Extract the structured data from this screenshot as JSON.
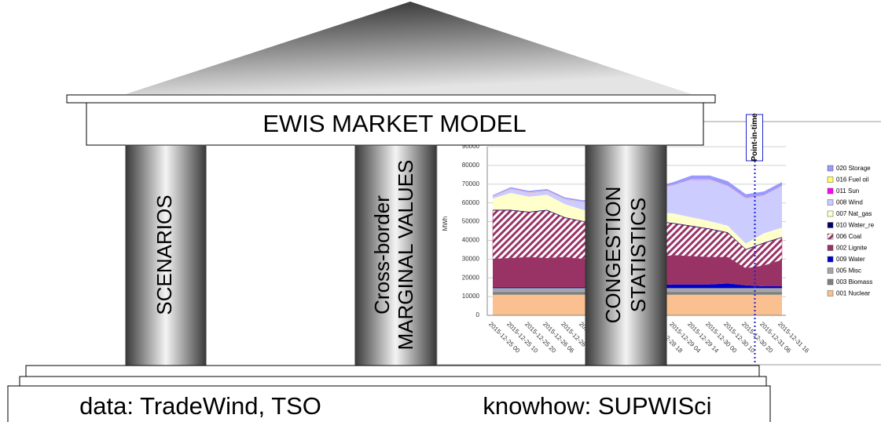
{
  "title": "EWIS MARKET MODEL",
  "pillars": [
    {
      "lines": [
        "SCENARIOS"
      ]
    },
    {
      "lines": [
        "Cross-border",
        "MARGINAL VALUES"
      ]
    },
    {
      "lines": [
        "CONGESTION",
        "STATISTICS"
      ]
    }
  ],
  "base": {
    "left": "data: TradeWind, TSO",
    "right": "knowhow: SUPWISci"
  },
  "chart_data": {
    "type": "area",
    "stacked": true,
    "y_label": "MWh",
    "annotation": "Point-in-time",
    "categories": [
      "2015-12-25 00",
      "2015-12-25 10",
      "2015-12-25 20",
      "2015-12-26 06",
      "2015-12-26 16",
      "2015-12-27 02",
      "2015-12-27 12",
      "2015-12-27 22",
      "2015-12-28 08",
      "2015-12-28 18",
      "2015-12-29 04",
      "2015-12-29 14",
      "2015-12-30 00",
      "2015-12-30 10",
      "2015-12-30 20",
      "2015-12-31 06",
      "2015-12-31 16"
    ],
    "ylim": [
      0,
      90000
    ],
    "yticks": [
      0,
      10000,
      20000,
      30000,
      40000,
      50000,
      60000,
      70000,
      80000,
      90000
    ],
    "grid": true,
    "legend": "right",
    "series": [
      {
        "name": "001 Nuclear",
        "color": "#fac090",
        "values": [
          11000,
          11000,
          11000,
          11000,
          11000,
          11000,
          11000,
          11000,
          11000,
          11000,
          11000,
          11000,
          11000,
          11000,
          11000,
          11000,
          11000
        ]
      },
      {
        "name": "003 Biomass",
        "color": "#7f7f7f",
        "values": [
          1500,
          1500,
          1500,
          1500,
          1500,
          1500,
          1500,
          1500,
          1500,
          1500,
          1500,
          1500,
          1500,
          1500,
          1500,
          1500,
          1500
        ]
      },
      {
        "name": "005 Misc",
        "color": "#a6a6a6",
        "values": [
          2000,
          2000,
          2000,
          2000,
          2000,
          2000,
          2000,
          2000,
          2000,
          2000,
          2000,
          2000,
          2000,
          2000,
          2000,
          2000,
          2000
        ]
      },
      {
        "name": "009 Water",
        "color": "#0000cc",
        "values": [
          500,
          500,
          500,
          500,
          500,
          500,
          500,
          500,
          500,
          1500,
          2000,
          2000,
          2000,
          2500,
          1500,
          1000,
          1000
        ]
      },
      {
        "name": "002 Lignite",
        "color": "#993366",
        "values": [
          15000,
          15500,
          16000,
          15500,
          16000,
          15000,
          15500,
          16000,
          16000,
          15000,
          15500,
          15000,
          14500,
          14000,
          9000,
          11000,
          14000
        ]
      },
      {
        "name": "006 Coal",
        "color": "#993366",
        "hatch": true,
        "values": [
          26000,
          25500,
          24000,
          25500,
          21000,
          20000,
          20000,
          21000,
          20000,
          19000,
          17000,
          16000,
          15000,
          13000,
          10000,
          12000,
          12000
        ]
      },
      {
        "name": "010 Water_re",
        "color": "#000066",
        "values": [
          300,
          300,
          300,
          300,
          300,
          300,
          300,
          300,
          300,
          300,
          300,
          300,
          300,
          300,
          300,
          300,
          300
        ]
      },
      {
        "name": "007 Nat_gas",
        "color": "#ffffcc",
        "values": [
          6000,
          9000,
          8000,
          8000,
          7000,
          6000,
          5000,
          5000,
          5000,
          5000,
          5000,
          4500,
          4000,
          3500,
          3000,
          5000,
          5000
        ]
      },
      {
        "name": "008 Wind",
        "color": "#ccccff",
        "values": [
          1000,
          2000,
          2000,
          2000,
          2500,
          4000,
          6000,
          8000,
          10000,
          12000,
          15000,
          20000,
          22000,
          21000,
          24000,
          20000,
          22000
        ]
      },
      {
        "name": "011 Sun",
        "color": "#ff00ff",
        "values": [
          100,
          100,
          100,
          100,
          100,
          100,
          100,
          100,
          100,
          100,
          100,
          100,
          100,
          100,
          100,
          100,
          100
        ]
      },
      {
        "name": "016 Fuel oil",
        "color": "#ffff66",
        "values": [
          200,
          200,
          200,
          200,
          200,
          200,
          200,
          200,
          200,
          200,
          200,
          200,
          200,
          200,
          200,
          200,
          200
        ]
      },
      {
        "name": "020 Storage",
        "color": "#9999ff",
        "values": [
          500,
          800,
          800,
          800,
          800,
          800,
          800,
          800,
          800,
          1000,
          1500,
          2000,
          2000,
          2500,
          2000,
          2000,
          2000
        ]
      }
    ]
  }
}
